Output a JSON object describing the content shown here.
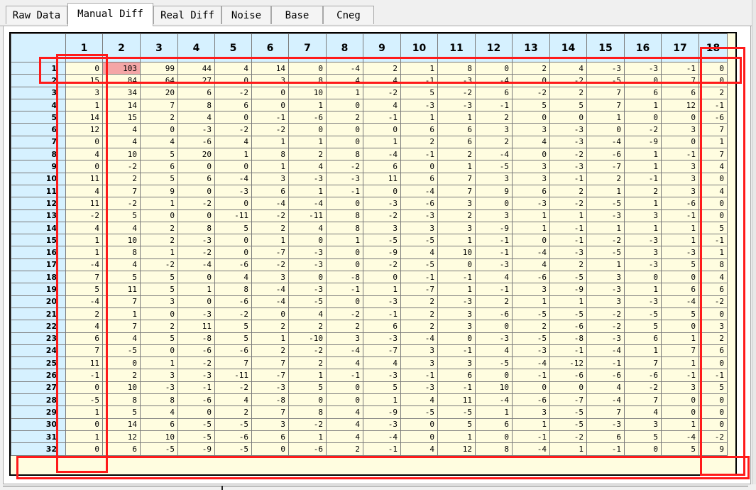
{
  "tabs": [
    {
      "label": "Raw Data",
      "active": false
    },
    {
      "label": "Manual Diff",
      "active": true
    },
    {
      "label": "Real Diff",
      "active": false
    },
    {
      "label": "Noise",
      "active": false
    },
    {
      "label": "Base",
      "active": false
    },
    {
      "label": "Cneg",
      "active": false
    }
  ],
  "grid": {
    "columns": [
      "1",
      "2",
      "3",
      "4",
      "5",
      "6",
      "7",
      "8",
      "9",
      "10",
      "11",
      "12",
      "13",
      "14",
      "15",
      "16",
      "17",
      "18"
    ],
    "highlight_color": "#f4a6a6",
    "highlighted_cell": {
      "row": "1",
      "col": "2"
    },
    "annotation_color": "#ff1a1a",
    "rows": [
      {
        "label": "1",
        "values": [
          0,
          103,
          99,
          44,
          4,
          14,
          0,
          -4,
          2,
          1,
          8,
          0,
          2,
          4,
          -3,
          -3,
          -1,
          0
        ]
      },
      {
        "label": "2",
        "values": [
          15,
          84,
          64,
          27,
          0,
          3,
          8,
          4,
          4,
          -1,
          -3,
          -4,
          0,
          -2,
          -5,
          0,
          7,
          0
        ]
      },
      {
        "label": "3",
        "values": [
          3,
          34,
          20,
          6,
          -2,
          0,
          10,
          1,
          -2,
          5,
          -2,
          6,
          -2,
          2,
          7,
          6,
          6,
          2
        ]
      },
      {
        "label": "4",
        "values": [
          1,
          14,
          7,
          8,
          6,
          0,
          1,
          0,
          4,
          -3,
          -3,
          -1,
          5,
          5,
          7,
          1,
          12,
          -1
        ]
      },
      {
        "label": "5",
        "values": [
          14,
          15,
          2,
          4,
          0,
          -1,
          -6,
          2,
          -1,
          1,
          1,
          2,
          0,
          0,
          1,
          0,
          0,
          -6
        ]
      },
      {
        "label": "6",
        "values": [
          12,
          4,
          0,
          -3,
          -2,
          -2,
          0,
          0,
          0,
          6,
          6,
          3,
          3,
          -3,
          0,
          -2,
          3,
          7
        ]
      },
      {
        "label": "7",
        "values": [
          0,
          4,
          4,
          -6,
          4,
          1,
          1,
          0,
          1,
          2,
          6,
          2,
          4,
          -3,
          -4,
          -9,
          0,
          1
        ]
      },
      {
        "label": "8",
        "values": [
          4,
          10,
          5,
          20,
          1,
          8,
          2,
          8,
          -4,
          -1,
          2,
          -4,
          0,
          -2,
          -6,
          1,
          -1,
          7
        ]
      },
      {
        "label": "9",
        "values": [
          0,
          -2,
          6,
          0,
          0,
          1,
          4,
          -2,
          6,
          0,
          1,
          -5,
          3,
          -3,
          -7,
          1,
          3,
          4
        ]
      },
      {
        "label": "10",
        "values": [
          11,
          2,
          5,
          6,
          -4,
          3,
          -3,
          -3,
          11,
          6,
          7,
          3,
          3,
          -1,
          2,
          -1,
          3,
          0
        ]
      },
      {
        "label": "11",
        "values": [
          4,
          7,
          9,
          0,
          -3,
          6,
          1,
          -1,
          0,
          -4,
          7,
          9,
          6,
          2,
          1,
          2,
          3,
          4
        ]
      },
      {
        "label": "12",
        "values": [
          11,
          -2,
          1,
          -2,
          0,
          -4,
          -4,
          0,
          -3,
          -6,
          3,
          0,
          -3,
          -2,
          -5,
          1,
          -6,
          0
        ]
      },
      {
        "label": "13",
        "values": [
          -2,
          5,
          0,
          0,
          -11,
          -2,
          -11,
          8,
          -2,
          -3,
          2,
          3,
          1,
          1,
          -3,
          3,
          -1,
          0
        ]
      },
      {
        "label": "14",
        "values": [
          4,
          4,
          2,
          8,
          5,
          2,
          4,
          8,
          3,
          3,
          3,
          -9,
          1,
          -1,
          1,
          1,
          1,
          5
        ]
      },
      {
        "label": "15",
        "values": [
          1,
          10,
          2,
          -3,
          0,
          1,
          0,
          1,
          -5,
          -5,
          1,
          -1,
          0,
          -1,
          -2,
          -3,
          1,
          -1
        ]
      },
      {
        "label": "16",
        "values": [
          1,
          8,
          1,
          -2,
          0,
          -7,
          -3,
          0,
          -9,
          4,
          10,
          -1,
          -4,
          -3,
          -5,
          3,
          -3,
          1
        ]
      },
      {
        "label": "17",
        "values": [
          -4,
          4,
          -2,
          -4,
          -6,
          -2,
          -3,
          0,
          -2,
          -5,
          0,
          -3,
          4,
          2,
          1,
          -3,
          5,
          8
        ]
      },
      {
        "label": "18",
        "values": [
          7,
          5,
          5,
          0,
          4,
          3,
          0,
          -8,
          0,
          -1,
          -1,
          4,
          -6,
          -5,
          3,
          0,
          0,
          4
        ]
      },
      {
        "label": "19",
        "values": [
          5,
          11,
          5,
          1,
          8,
          -4,
          -3,
          -1,
          1,
          -7,
          1,
          -1,
          3,
          -9,
          -3,
          1,
          6,
          6
        ]
      },
      {
        "label": "20",
        "values": [
          -4,
          7,
          3,
          0,
          -6,
          -4,
          -5,
          0,
          -3,
          2,
          -3,
          2,
          1,
          1,
          3,
          -3,
          -4,
          -2
        ]
      },
      {
        "label": "21",
        "values": [
          2,
          1,
          0,
          -3,
          -2,
          0,
          4,
          -2,
          -1,
          2,
          3,
          -6,
          -5,
          -5,
          -2,
          -5,
          5,
          0
        ]
      },
      {
        "label": "22",
        "values": [
          4,
          7,
          2,
          11,
          5,
          2,
          2,
          2,
          6,
          2,
          3,
          0,
          2,
          -6,
          -2,
          5,
          0,
          3
        ]
      },
      {
        "label": "23",
        "values": [
          6,
          4,
          5,
          -8,
          5,
          1,
          -10,
          3,
          -3,
          -4,
          0,
          -3,
          -5,
          -8,
          -3,
          6,
          1,
          2
        ]
      },
      {
        "label": "24",
        "values": [
          7,
          -5,
          0,
          -6,
          -6,
          2,
          -2,
          -4,
          -7,
          3,
          -1,
          4,
          -3,
          -1,
          -4,
          1,
          7,
          6
        ]
      },
      {
        "label": "25",
        "values": [
          11,
          0,
          1,
          -2,
          7,
          7,
          2,
          4,
          4,
          3,
          3,
          -5,
          -4,
          -12,
          -1,
          7,
          1,
          0
        ]
      },
      {
        "label": "26",
        "values": [
          -1,
          2,
          3,
          -3,
          -11,
          -7,
          1,
          -1,
          -3,
          -1,
          6,
          0,
          -1,
          -6,
          -6,
          -6,
          -1,
          -1
        ]
      },
      {
        "label": "27",
        "values": [
          0,
          10,
          -3,
          -1,
          -2,
          -3,
          5,
          0,
          5,
          -3,
          -1,
          10,
          0,
          0,
          4,
          -2,
          3,
          5
        ]
      },
      {
        "label": "28",
        "values": [
          -5,
          8,
          8,
          -6,
          4,
          -8,
          0,
          0,
          1,
          4,
          11,
          -4,
          -6,
          -7,
          -4,
          7,
          0,
          0
        ]
      },
      {
        "label": "29",
        "values": [
          1,
          5,
          4,
          0,
          2,
          7,
          8,
          4,
          -9,
          -5,
          -5,
          1,
          3,
          -5,
          7,
          4,
          0,
          0
        ]
      },
      {
        "label": "30",
        "values": [
          0,
          14,
          6,
          -5,
          -5,
          3,
          -2,
          4,
          -3,
          0,
          5,
          6,
          1,
          -5,
          -3,
          3,
          1,
          0
        ]
      },
      {
        "label": "31",
        "values": [
          1,
          12,
          10,
          -5,
          -6,
          6,
          1,
          4,
          -4,
          0,
          1,
          0,
          -1,
          -2,
          6,
          5,
          -4,
          -2
        ]
      },
      {
        "label": "32",
        "values": [
          0,
          6,
          -5,
          -9,
          -5,
          0,
          -6,
          2,
          -1,
          4,
          12,
          8,
          -4,
          1,
          -1,
          0,
          5,
          9
        ]
      }
    ]
  }
}
